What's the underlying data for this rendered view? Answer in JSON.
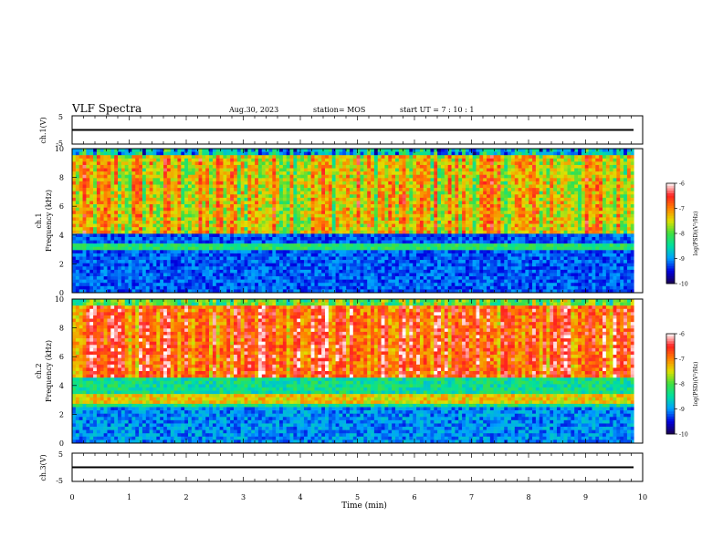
{
  "header": {
    "title": "VLF Spectra",
    "date": "Aug.30, 2023",
    "station": "station= MOS",
    "start": "start  UT =   7 : 10 : 1"
  },
  "chart_data": [
    {
      "type": "line",
      "panel": "ch1-waveform",
      "ylabel": "ch.1(V)",
      "yticks": [
        "5",
        "-5"
      ],
      "ylim": [
        -5,
        5
      ],
      "series": [
        {
          "values": [
            0
          ]
        }
      ]
    },
    {
      "type": "heatmap",
      "panel": "ch1-spectrogram",
      "ylabel": "Frequency (kHz)",
      "panel_label": "ch.1",
      "yticks": [
        "0",
        "2",
        "4",
        "6",
        "8",
        "10"
      ],
      "ylim": [
        0,
        10
      ],
      "xlim": [
        0,
        10
      ],
      "data_end_min": 9.85,
      "colorbar": {
        "label": "log(PSD)(V²/Hz)",
        "ticks": [
          "-6",
          "-7",
          "-8",
          "-9",
          "-10"
        ],
        "range": [
          -10,
          -6
        ]
      },
      "colormap": [
        "#1a0050",
        "#0000e0",
        "#00a0ff",
        "#00e0a0",
        "#40e040",
        "#e0e000",
        "#ff8000",
        "#ff2020",
        "#ffffff"
      ]
    },
    {
      "type": "heatmap",
      "panel": "ch2-spectrogram",
      "ylabel": "Frequency (kHz)",
      "panel_label": "ch.2",
      "yticks": [
        "0",
        "2",
        "4",
        "6",
        "8",
        "10"
      ],
      "ylim": [
        0,
        10
      ],
      "xlim": [
        0,
        10
      ],
      "data_end_min": 9.85,
      "colorbar": {
        "label": "log(PSD)(V²/Hz)",
        "ticks": [
          "-6",
          "-7",
          "-8",
          "-9",
          "-10"
        ],
        "range": [
          -10,
          -6
        ]
      },
      "colormap": [
        "#1a0050",
        "#0000e0",
        "#00a0ff",
        "#00e0a0",
        "#40e040",
        "#e0e000",
        "#ff8000",
        "#ff2020",
        "#ffffff"
      ]
    },
    {
      "type": "line",
      "panel": "ch3-waveform",
      "ylabel": "ch.3(V)",
      "yticks": [
        "5",
        "-5"
      ],
      "ylim": [
        -5,
        5
      ],
      "series": [
        {
          "values": [
            0
          ]
        }
      ]
    }
  ],
  "xaxis": {
    "label": "Time  (min)",
    "ticks": [
      "0",
      "1",
      "2",
      "3",
      "4",
      "5",
      "6",
      "7",
      "8",
      "9",
      "10"
    ],
    "xlim": [
      0,
      10
    ]
  }
}
